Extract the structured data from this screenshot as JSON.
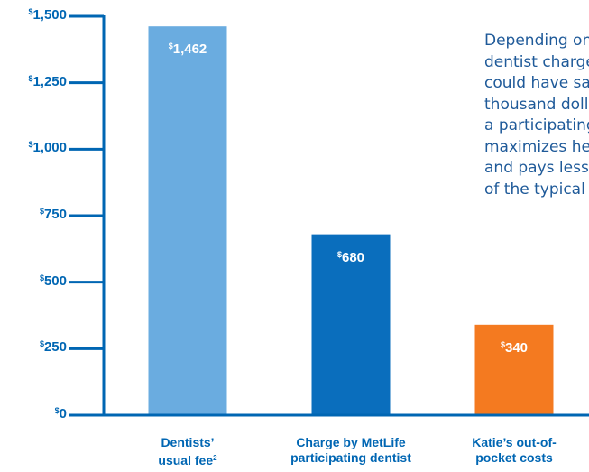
{
  "colors": {
    "axis": "#0066b3",
    "text": "#1f5a99",
    "bars": [
      "#6aace0",
      "#0a6ebd",
      "#f47a20"
    ]
  },
  "chart_data": {
    "type": "bar",
    "categories": [
      "Dentists’ usual fee",
      "Charge by MetLife participating dentist",
      "Katie’s out-of-pocket costs"
    ],
    "category_lines": [
      [
        "Dentists’",
        "usual fee"
      ],
      [
        "Charge by MetLife",
        "participating dentist"
      ],
      [
        "Katie’s out-of-",
        "pocket costs"
      ]
    ],
    "category_superscripts": [
      "2",
      "",
      ""
    ],
    "values": [
      1462,
      680,
      340
    ],
    "value_labels": [
      "1,462",
      "680",
      "340"
    ],
    "value_prefix": "$",
    "ylim": [
      0,
      1500
    ],
    "yticks": [
      0,
      250,
      500,
      750,
      1000,
      1250,
      1500
    ],
    "ytick_labels": [
      "0",
      "250",
      "500",
      "750",
      "1,000",
      "1,250",
      "1,500"
    ],
    "ytick_prefix": "$",
    "grid": false,
    "legend": "none",
    "title": "",
    "xlabel": "",
    "ylabel": ""
  },
  "side_text_lines": [
    "Depending on her",
    "dentist charges, Katie",
    "could have saved a",
    "thousand dollars by using",
    "a participating dentist that",
    "maximizes her benefits",
    "and pays less than half",
    "of the typical fee."
  ]
}
